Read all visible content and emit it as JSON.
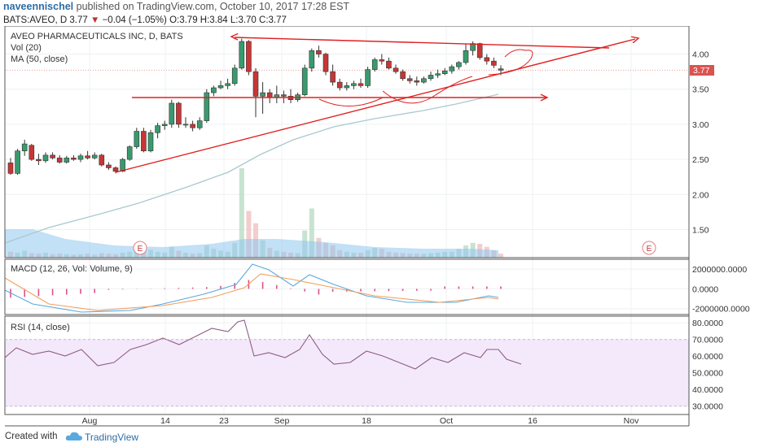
{
  "header": {
    "author": "naveennischel",
    "published_text": "published on TradingView.com, October 10, 2017 17:28 EST",
    "symbol": "BATS:AVEO, D",
    "last": "3.77",
    "change": "−0.04 (−1.05%)",
    "ohlc": "O:3.79 H:3.84 L:3.70 C:3.77"
  },
  "legend": {
    "title": "AVEO PHARMACEUTICALS INC, D, BATS",
    "vol": "Vol (20)",
    "ma": "MA (50, close)",
    "macd": "MACD (12, 26, Vol: Volume, 9)",
    "rsi": "RSI (14, close)"
  },
  "price_badge": "3.77",
  "earnings_marker": "E",
  "footer": {
    "created": "Created with",
    "brand": "TradingView"
  },
  "colors": {
    "up": "#3a9a6e",
    "down": "#c73636",
    "ma": "#a9c9cf",
    "vol_ma": "#90c7ee",
    "trend": "#e02020",
    "macd": "#5aa9dd",
    "signal": "#f0a060",
    "hist": "#e0508a",
    "rsi": "#8e5c84",
    "rsi_band": "#f4e9fb",
    "badge": "#d9534f"
  },
  "chart_data": {
    "type": "candlestick",
    "symbol": "AVEO",
    "x_ticks": [
      "Aug",
      "14",
      "23",
      "Sep",
      "18",
      "Oct",
      "16",
      "Nov"
    ],
    "price_ticks": [
      "4.00",
      "3.50",
      "3.00",
      "2.50",
      "2.00",
      "1.50"
    ],
    "macd_ticks": [
      "2000000.0000",
      "0.0000",
      "-2000000.0000"
    ],
    "rsi_ticks": [
      "80.0000",
      "70.0000",
      "60.0000",
      "50.0000",
      "40.0000",
      "30.0000"
    ],
    "candles": [
      [
        2.45,
        2.52,
        2.28,
        2.3
      ],
      [
        2.3,
        2.65,
        2.28,
        2.62
      ],
      [
        2.62,
        2.78,
        2.55,
        2.72
      ],
      [
        2.7,
        2.72,
        2.48,
        2.5
      ],
      [
        2.5,
        2.58,
        2.42,
        2.48
      ],
      [
        2.48,
        2.6,
        2.45,
        2.56
      ],
      [
        2.56,
        2.6,
        2.5,
        2.52
      ],
      [
        2.52,
        2.56,
        2.44,
        2.46
      ],
      [
        2.46,
        2.55,
        2.44,
        2.52
      ],
      [
        2.52,
        2.56,
        2.48,
        2.5
      ],
      [
        2.5,
        2.58,
        2.46,
        2.55
      ],
      [
        2.55,
        2.62,
        2.5,
        2.52
      ],
      [
        2.52,
        2.6,
        2.5,
        2.56
      ],
      [
        2.56,
        2.58,
        2.4,
        2.42
      ],
      [
        2.42,
        2.46,
        2.35,
        2.38
      ],
      [
        2.38,
        2.4,
        2.3,
        2.33
      ],
      [
        2.33,
        2.52,
        2.32,
        2.5
      ],
      [
        2.5,
        2.7,
        2.48,
        2.68
      ],
      [
        2.68,
        2.95,
        2.65,
        2.9
      ],
      [
        2.9,
        2.95,
        2.6,
        2.62
      ],
      [
        2.62,
        2.92,
        2.6,
        2.88
      ],
      [
        2.88,
        3.02,
        2.8,
        2.98
      ],
      [
        2.98,
        3.05,
        2.92,
        3.0
      ],
      [
        3.0,
        3.35,
        2.95,
        3.3
      ],
      [
        3.3,
        3.32,
        2.95,
        3.0
      ],
      [
        3.0,
        3.1,
        2.95,
        3.0
      ],
      [
        3.0,
        3.05,
        2.9,
        2.95
      ],
      [
        2.95,
        3.1,
        2.92,
        3.05
      ],
      [
        3.05,
        3.5,
        3.02,
        3.45
      ],
      [
        3.45,
        3.55,
        3.4,
        3.52
      ],
      [
        3.52,
        3.62,
        3.5,
        3.55
      ],
      [
        3.55,
        3.65,
        3.5,
        3.58
      ],
      [
        3.58,
        3.85,
        3.55,
        3.8
      ],
      [
        3.8,
        4.22,
        3.78,
        4.18
      ],
      [
        4.18,
        4.2,
        3.7,
        3.75
      ],
      [
        3.75,
        3.8,
        3.1,
        3.4
      ],
      [
        3.4,
        3.6,
        3.15,
        3.45
      ],
      [
        3.45,
        3.5,
        3.3,
        3.38
      ],
      [
        3.38,
        3.55,
        3.3,
        3.42
      ],
      [
        3.42,
        3.48,
        3.3,
        3.4
      ],
      [
        3.4,
        3.5,
        3.3,
        3.35
      ],
      [
        3.35,
        3.45,
        3.32,
        3.42
      ],
      [
        3.42,
        3.85,
        3.4,
        3.8
      ],
      [
        3.8,
        4.08,
        3.75,
        4.05
      ],
      [
        4.05,
        4.12,
        3.95,
        4.0
      ],
      [
        4.0,
        4.02,
        3.7,
        3.75
      ],
      [
        3.75,
        3.85,
        3.55,
        3.6
      ],
      [
        3.6,
        3.65,
        3.48,
        3.52
      ],
      [
        3.52,
        3.6,
        3.48,
        3.55
      ],
      [
        3.55,
        3.62,
        3.5,
        3.58
      ],
      [
        3.58,
        3.65,
        3.52,
        3.55
      ],
      [
        3.55,
        3.82,
        3.52,
        3.78
      ],
      [
        3.78,
        3.95,
        3.75,
        3.92
      ],
      [
        3.92,
        4.0,
        3.85,
        3.9
      ],
      [
        3.9,
        3.95,
        3.78,
        3.8
      ],
      [
        3.8,
        3.85,
        3.72,
        3.75
      ],
      [
        3.75,
        3.78,
        3.62,
        3.65
      ],
      [
        3.65,
        3.7,
        3.58,
        3.62
      ],
      [
        3.62,
        3.68,
        3.55,
        3.6
      ],
      [
        3.6,
        3.68,
        3.58,
        3.65
      ],
      [
        3.65,
        3.75,
        3.62,
        3.7
      ],
      [
        3.7,
        3.78,
        3.66,
        3.72
      ],
      [
        3.72,
        3.8,
        3.7,
        3.76
      ],
      [
        3.76,
        3.85,
        3.72,
        3.82
      ],
      [
        3.82,
        3.9,
        3.78,
        3.88
      ],
      [
        3.88,
        4.15,
        3.85,
        4.05
      ],
      [
        4.05,
        4.18,
        3.98,
        4.15
      ],
      [
        4.15,
        4.16,
        3.92,
        3.95
      ],
      [
        3.95,
        4.0,
        3.85,
        3.9
      ],
      [
        3.9,
        3.95,
        3.8,
        3.84
      ],
      [
        3.79,
        3.84,
        3.7,
        3.77
      ]
    ],
    "volume": [
      0.12,
      0.1,
      0.14,
      0.09,
      0.08,
      0.1,
      0.07,
      0.08,
      0.07,
      0.06,
      0.07,
      0.08,
      0.06,
      0.09,
      0.08,
      0.07,
      0.1,
      0.12,
      0.2,
      0.14,
      0.16,
      0.12,
      0.1,
      0.22,
      0.14,
      0.1,
      0.08,
      0.09,
      0.25,
      0.18,
      0.14,
      0.12,
      0.3,
      1.9,
      0.95,
      0.7,
      0.35,
      0.2,
      0.14,
      0.12,
      0.1,
      0.09,
      0.55,
      1.0,
      0.4,
      0.3,
      0.25,
      0.15,
      0.12,
      0.1,
      0.1,
      0.15,
      0.2,
      0.18,
      0.12,
      0.1,
      0.09,
      0.08,
      0.08,
      0.08,
      0.09,
      0.1,
      0.12,
      0.12,
      0.18,
      0.25,
      0.3,
      0.28,
      0.22,
      0.15,
      0.08
    ],
    "price_ylim": [
      1.1,
      4.4
    ],
    "macd_ylim": [
      -2600000,
      3000000
    ],
    "rsi_ylim": [
      25,
      84
    ],
    "rsi_band": [
      30,
      70
    ],
    "grid": true,
    "ma50_curve": [
      [
        0,
        1.3
      ],
      [
        30,
        2.1
      ],
      [
        60,
        3.0
      ],
      [
        80,
        3.3
      ],
      [
        100,
        3.5
      ],
      [
        120,
        3.6
      ]
    ],
    "annotations": [
      {
        "type": "trendline",
        "from": [
          16,
          2.3
        ],
        "to": [
          88,
          4.28
        ],
        "arrow": true
      },
      {
        "type": "trendline",
        "from": [
          34,
          4.25
        ],
        "to": [
          82,
          4.1
        ],
        "arrow": true
      },
      {
        "type": "horizontal",
        "from": [
          17,
          3.4
        ],
        "to": [
          80,
          3.4
        ],
        "arrow": true
      }
    ]
  }
}
